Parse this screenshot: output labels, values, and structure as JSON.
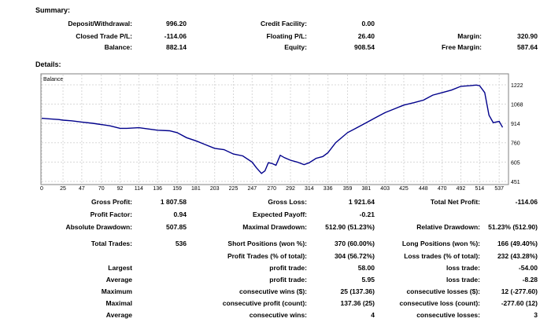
{
  "summary": {
    "heading": "Summary:",
    "deposit_label": "Deposit/Withdrawal:",
    "deposit_value": "996.20",
    "credit_label": "Credit Facility:",
    "credit_value": "0.00",
    "closed_pl_label": "Closed Trade P/L:",
    "closed_pl_value": "-114.06",
    "floating_pl_label": "Floating P/L:",
    "floating_pl_value": "26.40",
    "margin_label": "Margin:",
    "margin_value": "320.90",
    "balance_label": "Balance:",
    "balance_value": "882.14",
    "equity_label": "Equity:",
    "equity_value": "908.54",
    "free_margin_label": "Free Margin:",
    "free_margin_value": "587.64"
  },
  "details_heading": "Details:",
  "chart_data": {
    "type": "line",
    "legend": "Balance",
    "series": [
      {
        "name": "Balance",
        "color": "#00008b"
      }
    ],
    "x": [
      0,
      10,
      20,
      25,
      35,
      47,
      60,
      70,
      80,
      92,
      100,
      114,
      125,
      136,
      150,
      159,
      170,
      181,
      192,
      203,
      214,
      225,
      236,
      247,
      252,
      258,
      262,
      266,
      270,
      275,
      280,
      285,
      292,
      300,
      308,
      314,
      322,
      330,
      336,
      345,
      359,
      370,
      381,
      392,
      403,
      414,
      425,
      437,
      448,
      459,
      470,
      481,
      492,
      503,
      510,
      514,
      520,
      525,
      530,
      537,
      541
    ],
    "y": [
      955,
      950,
      945,
      940,
      935,
      925,
      915,
      905,
      895,
      875,
      875,
      880,
      870,
      860,
      855,
      840,
      800,
      775,
      745,
      715,
      705,
      670,
      655,
      605,
      560,
      515,
      535,
      600,
      595,
      580,
      660,
      640,
      620,
      605,
      585,
      600,
      635,
      650,
      680,
      760,
      840,
      880,
      920,
      960,
      1000,
      1030,
      1060,
      1080,
      1100,
      1140,
      1160,
      1180,
      1210,
      1215,
      1220,
      1215,
      1160,
      980,
      920,
      930,
      882
    ],
    "xticks": [
      "0",
      "25",
      "47",
      "70",
      "92",
      "114",
      "136",
      "159",
      "181",
      "203",
      "225",
      "247",
      "270",
      "292",
      "314",
      "336",
      "359",
      "381",
      "403",
      "425",
      "448",
      "470",
      "492",
      "514",
      "537"
    ],
    "yticks": [
      "1222",
      "1068",
      "914",
      "760",
      "605",
      "451"
    ],
    "xlim": [
      0,
      547
    ],
    "ylim": [
      451,
      1222
    ],
    "grid": true
  },
  "details": {
    "gross_profit_label": "Gross Profit:",
    "gross_profit_value": "1 807.58",
    "gross_loss_label": "Gross Loss:",
    "gross_loss_value": "1 921.64",
    "total_net_label": "Total Net Profit:",
    "total_net_value": "-114.06",
    "profit_factor_label": "Profit Factor:",
    "profit_factor_value": "0.94",
    "expected_payoff_label": "Expected Payoff:",
    "expected_payoff_value": "-0.21",
    "abs_dd_label": "Absolute Drawdown:",
    "abs_dd_value": "507.85",
    "max_dd_label": "Maximal Drawdown:",
    "max_dd_value": "512.90 (51.23%)",
    "rel_dd_label": "Relative Drawdown:",
    "rel_dd_value": "51.23% (512.90)",
    "total_trades_label": "Total Trades:",
    "total_trades_value": "536",
    "short_label": "Short Positions (won %):",
    "short_value": "370 (60.00%)",
    "long_label": "Long Positions (won %):",
    "long_value": "166 (49.40%)",
    "profit_trades_label": "Profit Trades (% of total):",
    "profit_trades_value": "304 (56.72%)",
    "loss_trades_label": "Loss trades (% of total):",
    "loss_trades_value": "232 (43.28%)",
    "largest_label": "Largest",
    "largest_profit_label": "profit trade:",
    "largest_profit_value": "58.00",
    "largest_loss_label": "loss trade:",
    "largest_loss_value": "-54.00",
    "average_label": "Average",
    "avg_profit_label": "profit trade:",
    "avg_profit_value": "5.95",
    "avg_loss_label": "loss trade:",
    "avg_loss_value": "-8.28",
    "maximum_label": "Maximum",
    "max_wins_label": "consecutive wins ($):",
    "max_wins_value": "25 (137.36)",
    "max_losses_label": "consecutive losses ($):",
    "max_losses_value": "12 (-277.60)",
    "maximal_label": "Maximal",
    "maximal_profit_label": "consecutive profit (count):",
    "maximal_profit_value": "137.36 (25)",
    "maximal_loss_label": "consecutive loss (count):",
    "maximal_loss_value": "-277.60 (12)",
    "average2_label": "Average",
    "avg_cons_wins_label": "consecutive wins:",
    "avg_cons_wins_value": "4",
    "avg_cons_losses_label": "consecutive losses:",
    "avg_cons_losses_value": "3"
  }
}
